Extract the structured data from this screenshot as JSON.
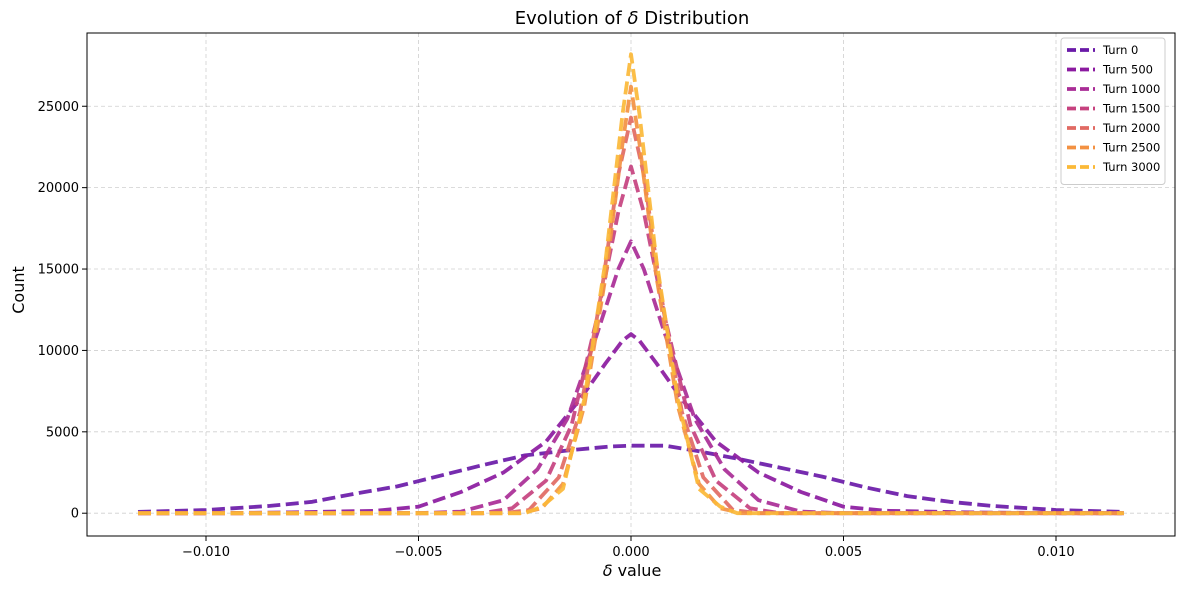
{
  "chart_data": {
    "type": "line",
    "title": "Evolution of δ Distribution",
    "title_prefix": "Evolution of ",
    "title_symbol": "δ",
    "title_suffix": " Distribution",
    "xlabel": "δ value",
    "xlabel_symbol": "δ",
    "xlabel_suffix": " value",
    "ylabel": "Count",
    "xlim": [
      -0.0128,
      0.0128
    ],
    "ylim": [
      -1400,
      29500
    ],
    "xticks": [
      -0.01,
      -0.005,
      0.0,
      0.005,
      0.01
    ],
    "xtick_labels": [
      "−0.010",
      "−0.005",
      "0.000",
      "0.005",
      "0.010"
    ],
    "yticks": [
      0,
      5000,
      10000,
      15000,
      20000,
      25000
    ],
    "ytick_labels": [
      "0",
      "5000",
      "10000",
      "15000",
      "20000",
      "25000"
    ],
    "grid": true,
    "legend_position": "top-right",
    "series": [
      {
        "name": "Turn 0",
        "color": "#6a1aa8",
        "x": [
          -0.0116,
          -0.01,
          -0.0085,
          -0.0075,
          -0.0065,
          -0.0055,
          -0.0045,
          -0.0035,
          -0.0025,
          -0.0015,
          -0.0005,
          0.0,
          0.0008,
          0.0015,
          0.0025,
          0.0035,
          0.0045,
          0.0055,
          0.0065,
          0.0075,
          0.0085,
          0.01,
          0.0116
        ],
        "y": [
          80,
          200,
          450,
          700,
          1200,
          1650,
          2300,
          2950,
          3550,
          3850,
          4100,
          4150,
          4150,
          3850,
          3350,
          2800,
          2250,
          1600,
          1050,
          700,
          450,
          200,
          80
        ]
      },
      {
        "name": "Turn 500",
        "color": "#8b1aa0",
        "x": [
          -0.0116,
          -0.01,
          -0.008,
          -0.006,
          -0.005,
          -0.004,
          -0.003,
          -0.002,
          -0.0012,
          -0.0006,
          -0.0002,
          0.0,
          0.0002,
          0.0006,
          0.0012,
          0.002,
          0.003,
          0.004,
          0.005,
          0.006,
          0.008,
          0.01,
          0.0116
        ],
        "y": [
          0,
          0,
          50,
          150,
          400,
          1300,
          2500,
          4400,
          7000,
          9200,
          10600,
          11000,
          10600,
          9200,
          7000,
          4400,
          2500,
          1300,
          400,
          150,
          50,
          0,
          0
        ]
      },
      {
        "name": "Turn 1000",
        "color": "#a92d96",
        "x": [
          -0.0116,
          -0.008,
          -0.005,
          -0.004,
          -0.003,
          -0.0022,
          -0.0015,
          -0.0008,
          -0.0003,
          0.0,
          0.0003,
          0.0008,
          0.0015,
          0.0022,
          0.003,
          0.004,
          0.005,
          0.008,
          0.0116
        ],
        "y": [
          0,
          0,
          0,
          100,
          800,
          2700,
          5800,
          11000,
          15000,
          16700,
          15000,
          11000,
          5800,
          2700,
          800,
          100,
          0,
          0,
          0
        ]
      },
      {
        "name": "Turn 1500",
        "color": "#c6427f",
        "x": [
          -0.0116,
          -0.006,
          -0.0035,
          -0.0028,
          -0.002,
          -0.0014,
          -0.0008,
          -0.0003,
          0.0,
          0.0003,
          0.0008,
          0.0014,
          0.002,
          0.0028,
          0.0035,
          0.006,
          0.0116
        ],
        "y": [
          0,
          0,
          0,
          300,
          2000,
          5400,
          12000,
          18500,
          21300,
          18500,
          12000,
          5400,
          2000,
          300,
          0,
          0,
          0
        ]
      },
      {
        "name": "Turn 2000",
        "color": "#e16a63",
        "x": [
          -0.0116,
          -0.005,
          -0.003,
          -0.0024,
          -0.0017,
          -0.0012,
          -0.0007,
          -0.0003,
          0.0,
          0.0003,
          0.0007,
          0.0012,
          0.0017,
          0.0024,
          0.003,
          0.005,
          0.0116
        ],
        "y": [
          0,
          0,
          0,
          200,
          2200,
          6200,
          13500,
          20800,
          24300,
          20800,
          13500,
          6200,
          2200,
          200,
          0,
          0,
          0
        ]
      },
      {
        "name": "Turn 2500",
        "color": "#f39142",
        "x": [
          -0.0116,
          -0.004,
          -0.0026,
          -0.0021,
          -0.0016,
          -0.0011,
          -0.0006,
          -0.0002,
          0.0,
          0.0002,
          0.0006,
          0.0011,
          0.0016,
          0.0021,
          0.0026,
          0.004,
          0.0116
        ],
        "y": [
          0,
          0,
          0,
          300,
          1800,
          6600,
          14500,
          22700,
          26200,
          22700,
          14500,
          6600,
          1800,
          300,
          0,
          0,
          0
        ]
      },
      {
        "name": "Turn 3000",
        "color": "#fbb938",
        "x": [
          -0.0116,
          -0.003,
          -0.0025,
          -0.0021,
          -0.0016,
          -0.0011,
          -0.0006,
          -0.0002,
          0.0,
          0.0002,
          0.0006,
          0.0011,
          0.0016,
          0.0021,
          0.0025,
          0.003,
          0.0116
        ],
        "y": [
          0,
          0,
          0,
          400,
          1500,
          7000,
          15500,
          24500,
          28200,
          24500,
          15500,
          7000,
          1500,
          400,
          0,
          0,
          0
        ]
      }
    ]
  }
}
